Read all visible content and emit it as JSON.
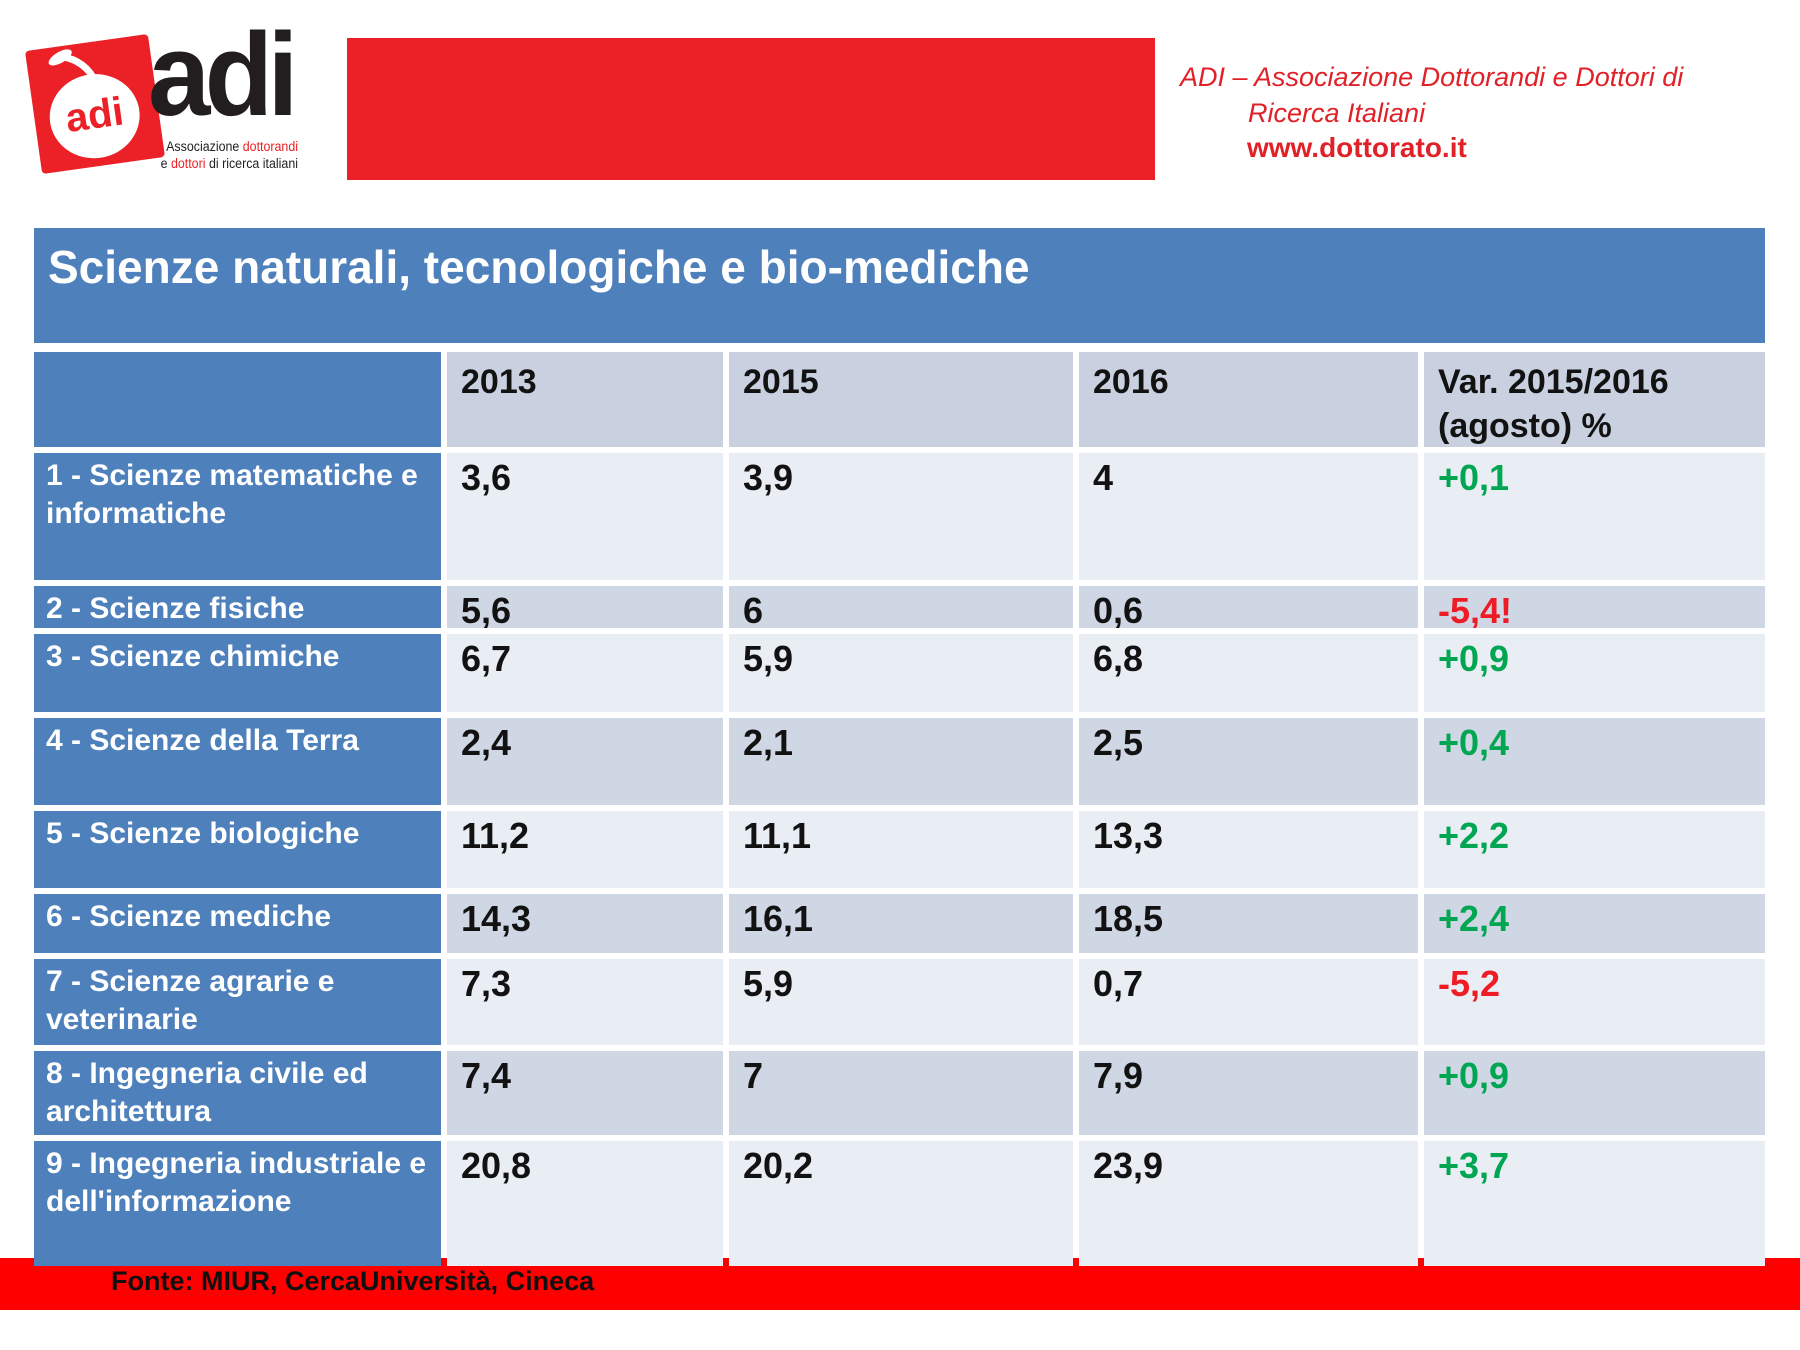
{
  "logo": {
    "mark": "adi",
    "brand": "adi",
    "tagline": {
      "l1_pre": "Associazione ",
      "l1_red": "dottorandi",
      "l2_pre": "e ",
      "l2_red": "dottori",
      "l2_post": " di ricerca italiani"
    }
  },
  "header_right": {
    "line1": "ADI – Associazione Dottorandi e Dottori di",
    "line2": "Ricerca Italiani",
    "line3": "www.dottorato.it"
  },
  "title": "Scienze naturali, tecnologiche e bio-mediche",
  "table": {
    "col_headers": [
      "2013",
      "2015",
      "2016"
    ],
    "var_header_line1": "Var. 2015/2016",
    "var_header_line2": "(agosto) %",
    "rows": [
      {
        "label": "1 - Scienze matematiche e informatiche",
        "y2013": "3,6",
        "y2015": "3,9",
        "y2016": "4",
        "var": "+0,1",
        "direction": "up"
      },
      {
        "label": "2 - Scienze fisiche",
        "y2013": "5,6",
        "y2015": "6",
        "y2016": "0,6",
        "var": "-5,4!",
        "direction": "down"
      },
      {
        "label": "3 - Scienze chimiche",
        "y2013": "6,7",
        "y2015": "5,9",
        "y2016": "6,8",
        "var": "+0,9",
        "direction": "up"
      },
      {
        "label": "4 - Scienze della Terra",
        "y2013": "2,4",
        "y2015": "2,1",
        "y2016": "2,5",
        "var": "+0,4",
        "direction": "up"
      },
      {
        "label": "5 - Scienze biologiche",
        "y2013": "11,2",
        "y2015": "11,1",
        "y2016": "13,3",
        "var": "+2,2",
        "direction": "up"
      },
      {
        "label": "6 - Scienze mediche",
        "y2013": "14,3",
        "y2015": "16,1",
        "y2016": "18,5",
        "var": "+2,4",
        "direction": "up"
      },
      {
        "label": "7 - Scienze agrarie e veterinarie",
        "y2013": "7,3",
        "y2015": "5,9",
        "y2016": "0,7",
        "var": "-5,2",
        "direction": "down"
      },
      {
        "label": "8 - Ingegneria civile ed architettura",
        "y2013": "7,4",
        "y2015": "7",
        "y2016": "7,9",
        "var": "+0,9",
        "direction": "up"
      },
      {
        "label": "9 - Ingegneria industriale e dell'informazione",
        "y2013": "20,8",
        "y2015": "20,2",
        "y2016": "23,9",
        "var": "+3,7",
        "direction": "up"
      }
    ]
  },
  "footer": {
    "source": "Fonte: MIUR, CercaUniversità, Cineca"
  },
  "colors": {
    "steel_blue": "#4E80BC",
    "header_band": "#C9D1E1",
    "band_dark": "#CFD6E4",
    "band_light": "#E9EDF4",
    "positive_green": "#00A651",
    "negative_red": "#EE1C25",
    "brand_red": "#EC2127",
    "footer_red": "#FE0000"
  }
}
